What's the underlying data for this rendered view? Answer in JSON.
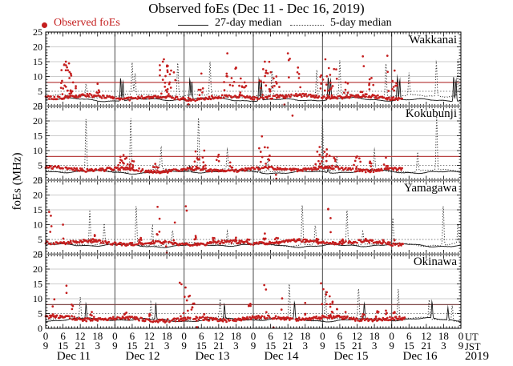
{
  "chart_data": {
    "type": "scatter",
    "title": "Observed foEs (Dec 11 - Dec 16, 2019)",
    "ylabel": "foEs (MHz)",
    "ylim": [
      0,
      25
    ],
    "y_major_ticks": [
      0,
      5,
      10,
      15,
      20,
      25
    ],
    "x_hours_range": [
      0,
      144
    ],
    "x_major_step_hours": 6,
    "x_minor_step_hours": 1,
    "ut_cycle": [
      "0",
      "6",
      "12",
      "18"
    ],
    "jst_cycle": [
      "9",
      "15",
      "21",
      "3"
    ],
    "axis_right": {
      "ut": "UT",
      "jst": "JST",
      "year": "2019"
    },
    "days": [
      {
        "label": "Dec 11"
      },
      {
        "label": "Dec 12"
      },
      {
        "label": "Dec 13"
      },
      {
        "label": "Dec 14"
      },
      {
        "label": "Dec 15"
      },
      {
        "label": "Dec 16"
      }
    ],
    "gridlines_mhz": [
      10,
      15,
      20
    ],
    "threshold_dotted_mhz": 5,
    "legend": [
      {
        "label": "Observed foEs",
        "marker": "red-dot",
        "color": "#c41e1e"
      },
      {
        "label": "27-day median",
        "marker": "solid-line",
        "color": "#222222"
      },
      {
        "label": "5-day median",
        "marker": "dotted-line",
        "color": "#444444"
      }
    ],
    "colors": {
      "observed": "#c41e1e",
      "median27": "#161616",
      "median5": "#2b2b2b",
      "grid": "#cccccc",
      "dotted_threshold": "#7a7a7a",
      "day_line": "#4a4a4a",
      "separator": "#8c8c8c"
    },
    "panels": [
      {
        "station": "Wakkanai",
        "red_line_mhz": 8,
        "red_line_color": "#b94444",
        "observed": {
          "base": 3.0,
          "spread": 0.55,
          "end_hour": 124,
          "seed": 101,
          "clusters": [
            [
              7,
              15,
              2.2,
              24
            ],
            [
              9.5,
              8,
              1,
              8
            ],
            [
              18,
              7.5,
              0.8,
              5
            ],
            [
              41,
              15.8,
              1.8,
              16
            ],
            [
              43.5,
              12,
              1.5,
              10
            ],
            [
              49.5,
              0.6,
              0.3,
              2
            ],
            [
              54,
              11,
              1,
              6
            ],
            [
              63,
              17.8,
              1.2,
              7
            ],
            [
              66,
              13,
              1.8,
              10
            ],
            [
              69,
              8,
              1,
              6
            ],
            [
              76,
              15,
              2.2,
              18
            ],
            [
              80,
              10,
              1.5,
              8
            ],
            [
              82.8,
              0.5,
              0.3,
              2
            ],
            [
              84,
              17.8,
              0.7,
              4
            ],
            [
              87.5,
              13,
              1,
              6
            ],
            [
              97,
              15.8,
              1.8,
              14
            ],
            [
              100,
              12.5,
              1.5,
              8
            ],
            [
              104,
              8,
              1,
              5
            ],
            [
              110,
              16.8,
              0.9,
              5
            ],
            [
              113,
              9.5,
              1,
              6
            ],
            [
              118.5,
              17,
              0.6,
              3
            ],
            [
              121,
              12,
              1.3,
              8
            ]
          ]
        },
        "median27": {
          "base": 2.2,
          "seed": 102,
          "spikes": [
            [
              26,
              10.2
            ],
            [
              26.8,
              8.8
            ],
            [
              50,
              9.4
            ],
            [
              50.7,
              8.2
            ],
            [
              74,
              9.8
            ],
            [
              74.8,
              8.6
            ],
            [
              98,
              9.9
            ],
            [
              98.8,
              8.8
            ],
            [
              122,
              10.2
            ],
            [
              122.8,
              9
            ],
            [
              141.5,
              10.8
            ],
            [
              142.3,
              9.6
            ]
          ]
        },
        "median5": {
          "base": 3.5,
          "seed": 103,
          "spikes": [
            [
              14,
              8
            ],
            [
              30,
              14.3
            ],
            [
              31,
              11
            ],
            [
              45.8,
              15
            ],
            [
              57,
              14.8
            ],
            [
              78.5,
              12
            ],
            [
              94,
              12.5
            ],
            [
              102,
              15
            ],
            [
              118,
              15.2
            ],
            [
              126,
              11
            ],
            [
              135.5,
              15
            ],
            [
              143,
              15.8
            ]
          ]
        }
      },
      {
        "station": "Kokubunji",
        "red_line_mhz": 8,
        "red_line_color": "#b94444",
        "observed": {
          "base": 3.6,
          "spread": 0.5,
          "end_hour": 124,
          "seed": 201,
          "clusters": [
            [
              27,
              8.5,
              1.8,
              12
            ],
            [
              30,
              6.5,
              1,
              6
            ],
            [
              38,
              5.5,
              1,
              5
            ],
            [
              52,
              9.7,
              1.4,
              9
            ],
            [
              55,
              10,
              0.8,
              5
            ],
            [
              60,
              8.6,
              0.8,
              4
            ],
            [
              64,
              6,
              1,
              4
            ],
            [
              75,
              14.8,
              1.2,
              6
            ],
            [
              77,
              11,
              0.8,
              5
            ],
            [
              80,
              0.5,
              0.3,
              2
            ],
            [
              85.6,
              21.8,
              0.2,
              1
            ],
            [
              95,
              11.2,
              1.4,
              9
            ],
            [
              97.5,
              10.4,
              1,
              6
            ],
            [
              100,
              7.5,
              1,
              5
            ],
            [
              108,
              8,
              1.2,
              7
            ],
            [
              112.5,
              6.3,
              0.8,
              4
            ],
            [
              118,
              7.6,
              0.7,
              4
            ]
          ]
        },
        "median27": {
          "base": 2.8,
          "seed": 202,
          "spikes": [
            [
              50,
              4.8
            ],
            [
              74,
              4.6
            ],
            [
              98,
              4.8
            ]
          ]
        },
        "median5": {
          "base": 3.3,
          "seed": 203,
          "spikes": [
            [
              14,
              20.8
            ],
            [
              29.5,
              21.8
            ],
            [
              40,
              10.5
            ],
            [
              53,
              21.6
            ],
            [
              63,
              9.8
            ],
            [
              77,
              8
            ],
            [
              96,
              20.8
            ],
            [
              101,
              8
            ],
            [
              114,
              9.8
            ],
            [
              129,
              9.8
            ],
            [
              135.6,
              21.5
            ]
          ]
        }
      },
      {
        "station": "Yamagawa",
        "red_line_mhz": null,
        "red_line_color": null,
        "observed": {
          "base": 3.9,
          "spread": 0.5,
          "end_hour": 124,
          "seed": 301,
          "clusters": [
            [
              1.2,
              14.3,
              0.4,
              2
            ],
            [
              1.8,
              13,
              0.4,
              2
            ],
            [
              6,
              10,
              0.4,
              2
            ],
            [
              17,
              6.5,
              0.8,
              4
            ],
            [
              33,
              5.5,
              0.8,
              4
            ],
            [
              38.8,
              16,
              0.5,
              3
            ],
            [
              39.5,
              12,
              0.5,
              2
            ],
            [
              42,
              0.5,
              0.3,
              2
            ],
            [
              44.8,
              10.7,
              0.4,
              2
            ],
            [
              48.6,
              16.2,
              0.4,
              2
            ],
            [
              52,
              6.2,
              0.8,
              4
            ],
            [
              58,
              5.5,
              0.7,
              3
            ],
            [
              66,
              5.6,
              0.7,
              3
            ],
            [
              70,
              5,
              0.6,
              3
            ],
            [
              76,
              7,
              0.8,
              4
            ],
            [
              80,
              5.5,
              0.7,
              3
            ],
            [
              90,
              5,
              0.6,
              3
            ],
            [
              94,
              5.2,
              0.6,
              3
            ],
            [
              98,
              15.3,
              0.4,
              2
            ],
            [
              98.8,
              12.2,
              0.5,
              2
            ],
            [
              103,
              5,
              0.6,
              3
            ],
            [
              111,
              5.2,
              0.6,
              3
            ],
            [
              117,
              4.8,
              0.5,
              2
            ],
            [
              121,
              4.8,
              0.5,
              2
            ]
          ]
        },
        "median27": {
          "base": 3.0,
          "seed": 302,
          "spikes": []
        },
        "median5": {
          "base": 3.4,
          "seed": 303,
          "spikes": [
            [
              15.3,
              15.4
            ],
            [
              20.3,
              10.4
            ],
            [
              31.4,
              17
            ],
            [
              37,
              10.4
            ],
            [
              44,
              8
            ],
            [
              63,
              8
            ],
            [
              89,
              17
            ],
            [
              93.5,
              9.8
            ],
            [
              104.5,
              15
            ],
            [
              110,
              8
            ],
            [
              120.4,
              12
            ],
            [
              137.9,
              17
            ],
            [
              143,
              10
            ]
          ]
        }
      },
      {
        "station": "Okinawa",
        "red_line_mhz": 8,
        "red_line_color": "#7d4646",
        "observed": {
          "base": 3.2,
          "spread": 0.55,
          "end_hour": 124.5,
          "seed": 401,
          "clusters": [
            [
              3,
              9.8,
              0.8,
              4
            ],
            [
              7.2,
              14.4,
              0.4,
              2
            ],
            [
              9,
              8,
              0.8,
              4
            ],
            [
              16,
              5.5,
              0.8,
              4
            ],
            [
              28,
              5.3,
              0.8,
              4
            ],
            [
              36,
              4.8,
              0.6,
              3
            ],
            [
              46.5,
              15.4,
              0.6,
              3
            ],
            [
              48.5,
              13.8,
              0.7,
              4
            ],
            [
              50,
              11,
              0.7,
              4
            ],
            [
              51.5,
              8.4,
              0.8,
              4
            ],
            [
              52.5,
              0.4,
              0.3,
              2
            ],
            [
              55,
              4.8,
              0.6,
              3
            ],
            [
              71,
              8.3,
              0.7,
              4
            ],
            [
              75.8,
              14.6,
              0.4,
              2
            ],
            [
              76.4,
              13.1,
              0.4,
              2
            ],
            [
              79,
              0.3,
              0.2,
              2
            ],
            [
              82,
              10.1,
              0.4,
              2
            ],
            [
              90,
              8.6,
              0.5,
              3
            ],
            [
              95.5,
              15.2,
              0.4,
              2
            ],
            [
              96.3,
              13.2,
              0.5,
              3
            ],
            [
              97.5,
              12.2,
              0.5,
              3
            ],
            [
              98.5,
              10.8,
              0.6,
              4
            ],
            [
              99.5,
              9,
              0.8,
              5
            ],
            [
              101,
              6.5,
              0.8,
              4
            ],
            [
              104,
              5.5,
              0.7,
              3
            ],
            [
              110,
              4.8,
              0.6,
              3
            ],
            [
              115,
              5.8,
              0.7,
              4
            ],
            [
              118,
              6,
              0.6,
              3
            ],
            [
              121,
              5.5,
              0.6,
              3
            ]
          ]
        },
        "median27": {
          "base": 2.9,
          "seed": 402,
          "spikes": [
            [
              14,
              8
            ],
            [
              38.2,
              8.3
            ],
            [
              62,
              7.8
            ],
            [
              86.3,
              8.5
            ],
            [
              110.5,
              8.2
            ],
            [
              134,
              8.5
            ],
            [
              139.5,
              7
            ]
          ]
        },
        "median5": {
          "base": 3.2,
          "seed": 403,
          "spikes": [
            [
              12,
              10.2
            ],
            [
              36.5,
              9
            ],
            [
              60.5,
              9.4
            ],
            [
              84.5,
              15
            ],
            [
              97,
              13.4
            ],
            [
              108.5,
              13.2
            ],
            [
              122.3,
              13.3
            ],
            [
              133,
              9.8
            ],
            [
              141,
              8.5
            ]
          ]
        }
      }
    ]
  }
}
